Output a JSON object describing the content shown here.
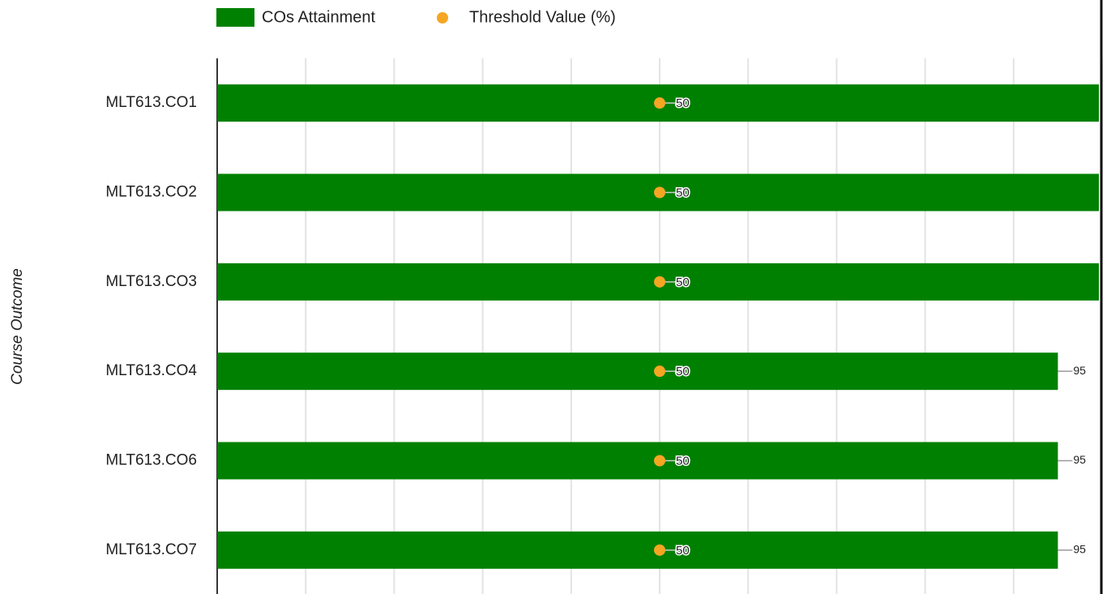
{
  "chart_data": {
    "type": "bar",
    "orientation": "horizontal",
    "y_label": "Course Outcome",
    "categories": [
      "MLT613.CO1",
      "MLT613.CO2",
      "MLT613.CO3",
      "MLT613.CO4",
      "MLT613.CO6",
      "MLT613.CO7"
    ],
    "series": [
      {
        "name": "COs Attainment",
        "color": "#008000",
        "values": [
          100,
          100,
          100,
          95,
          95,
          95
        ]
      },
      {
        "name": "Threshold Value (%)",
        "color": "#f5a623",
        "marker": "point",
        "values": [
          50,
          50,
          50,
          50,
          50,
          50
        ]
      }
    ],
    "xlim": [
      0,
      100
    ],
    "xticks": [
      0,
      10,
      20,
      30,
      40,
      50,
      60,
      70,
      80,
      90,
      100
    ],
    "grid": true,
    "legend": "top"
  }
}
